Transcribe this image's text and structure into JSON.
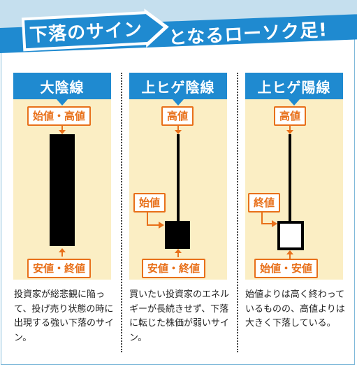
{
  "title": {
    "arrow_text": "下落のサイン",
    "rest_text": "となるローソク足!"
  },
  "panels": [
    {
      "heading": "大陰線",
      "labels": {
        "top": "始値・高値",
        "bottom": "安値・終値"
      },
      "description": "投資家が総悲観に陥って、投げ売り状態の時に出現する強い下落のサイン。"
    },
    {
      "heading": "上ヒゲ陰線",
      "labels": {
        "top": "高値",
        "middle": "始値",
        "bottom": "安値・終値"
      },
      "description": "買いたい投資家のエネルギーが長続きせず、下落に転じた株価が弱いサイン。"
    },
    {
      "heading": "上ヒゲ陽線",
      "labels": {
        "top": "高値",
        "middle": "終値",
        "bottom": "始値・安値"
      },
      "description": "始値よりは高く終わっているものの、高値よりは大きく下落している。"
    }
  ],
  "colors": {
    "accent_blue": "#1f8ad0",
    "label_orange": "#e8701a",
    "panel_bg": "#fbeec4"
  }
}
